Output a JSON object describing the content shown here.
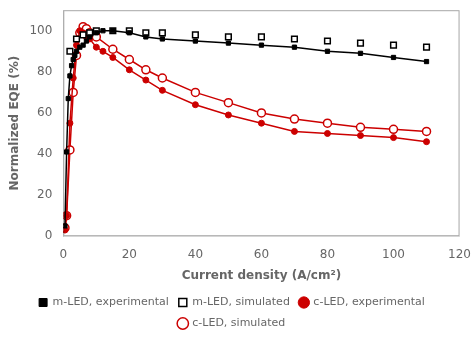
{
  "chart_data": {
    "type": "line",
    "xlabel": "Current density (A/cm²)",
    "ylabel": "Normalized EQE (%)",
    "xlim": [
      0,
      120
    ],
    "ylim": [
      0,
      110
    ],
    "xticks": [
      0,
      20,
      40,
      60,
      80,
      100,
      120
    ],
    "yticks": [
      0,
      20,
      40,
      60,
      80,
      100
    ],
    "grid": false,
    "legend": "bottom",
    "series": [
      {
        "name": "m-LED, experimental",
        "color": "#000000",
        "marker": "square",
        "line_style": "solid",
        "x": [
          0.5,
          1.0,
          1.5,
          2.0,
          2.5,
          3.0,
          3.5,
          4.0,
          5.0,
          6.0,
          7.0,
          8.0,
          10.0,
          12.0,
          15.0,
          20.0,
          25.0,
          30.0,
          40.0,
          50.0,
          60.0,
          70.0,
          80.0,
          90.0,
          100.0,
          110.0
        ],
        "values": [
          5,
          41,
          67,
          78,
          83,
          86,
          88,
          90,
          92,
          93,
          95,
          97,
          99,
          100,
          100,
          99,
          97,
          96,
          95,
          94,
          93,
          92,
          90,
          89,
          87,
          85
        ]
      },
      {
        "name": "m-LED, simulated",
        "color": "#000000",
        "marker": "square_open",
        "line_style": "none",
        "x": [
          2.0,
          4.0,
          6.0,
          8.0,
          10.0,
          15.0,
          20.0,
          25.0,
          30.0,
          40.0,
          50.0,
          60.0,
          70.0,
          80.0,
          90.0,
          100.0,
          110.0
        ],
        "values": [
          90,
          96,
          98,
          99,
          100,
          100,
          100,
          99,
          99,
          98,
          97,
          97,
          96,
          95,
          94,
          93,
          92
        ]
      },
      {
        "name": "c-LED, experimental",
        "color": "#cc0000",
        "marker": "circle",
        "line_style": "solid",
        "x": [
          0.5,
          1.0,
          2.0,
          3.0,
          4.0,
          5.0,
          6.0,
          7.0,
          8.0,
          10.0,
          12.0,
          15.0,
          20.0,
          25.0,
          30.0,
          40.0,
          50.0,
          60.0,
          70.0,
          80.0,
          90.0,
          100.0,
          110.0
        ],
        "values": [
          3,
          10,
          55,
          77,
          93,
          100,
          99,
          97,
          96,
          92,
          90,
          87,
          81,
          76,
          71,
          64,
          59,
          55,
          51,
          50,
          49,
          48,
          46
        ]
      },
      {
        "name": "c-LED, simulated",
        "color": "#cc0000",
        "marker": "circle_open",
        "line_style": "solid",
        "x": [
          0.5,
          1.0,
          2.0,
          3.0,
          4.0,
          5.0,
          6.0,
          7.0,
          8.0,
          10.0,
          15.0,
          20.0,
          25.0,
          30.0,
          40.0,
          50.0,
          60.0,
          70.0,
          80.0,
          90.0,
          100.0,
          110.0
        ],
        "values": [
          4,
          10,
          42,
          70,
          88,
          99,
          102,
          101,
          99,
          97,
          91,
          86,
          81,
          77,
          70,
          65,
          60,
          57,
          55,
          53,
          52,
          51
        ]
      }
    ]
  }
}
